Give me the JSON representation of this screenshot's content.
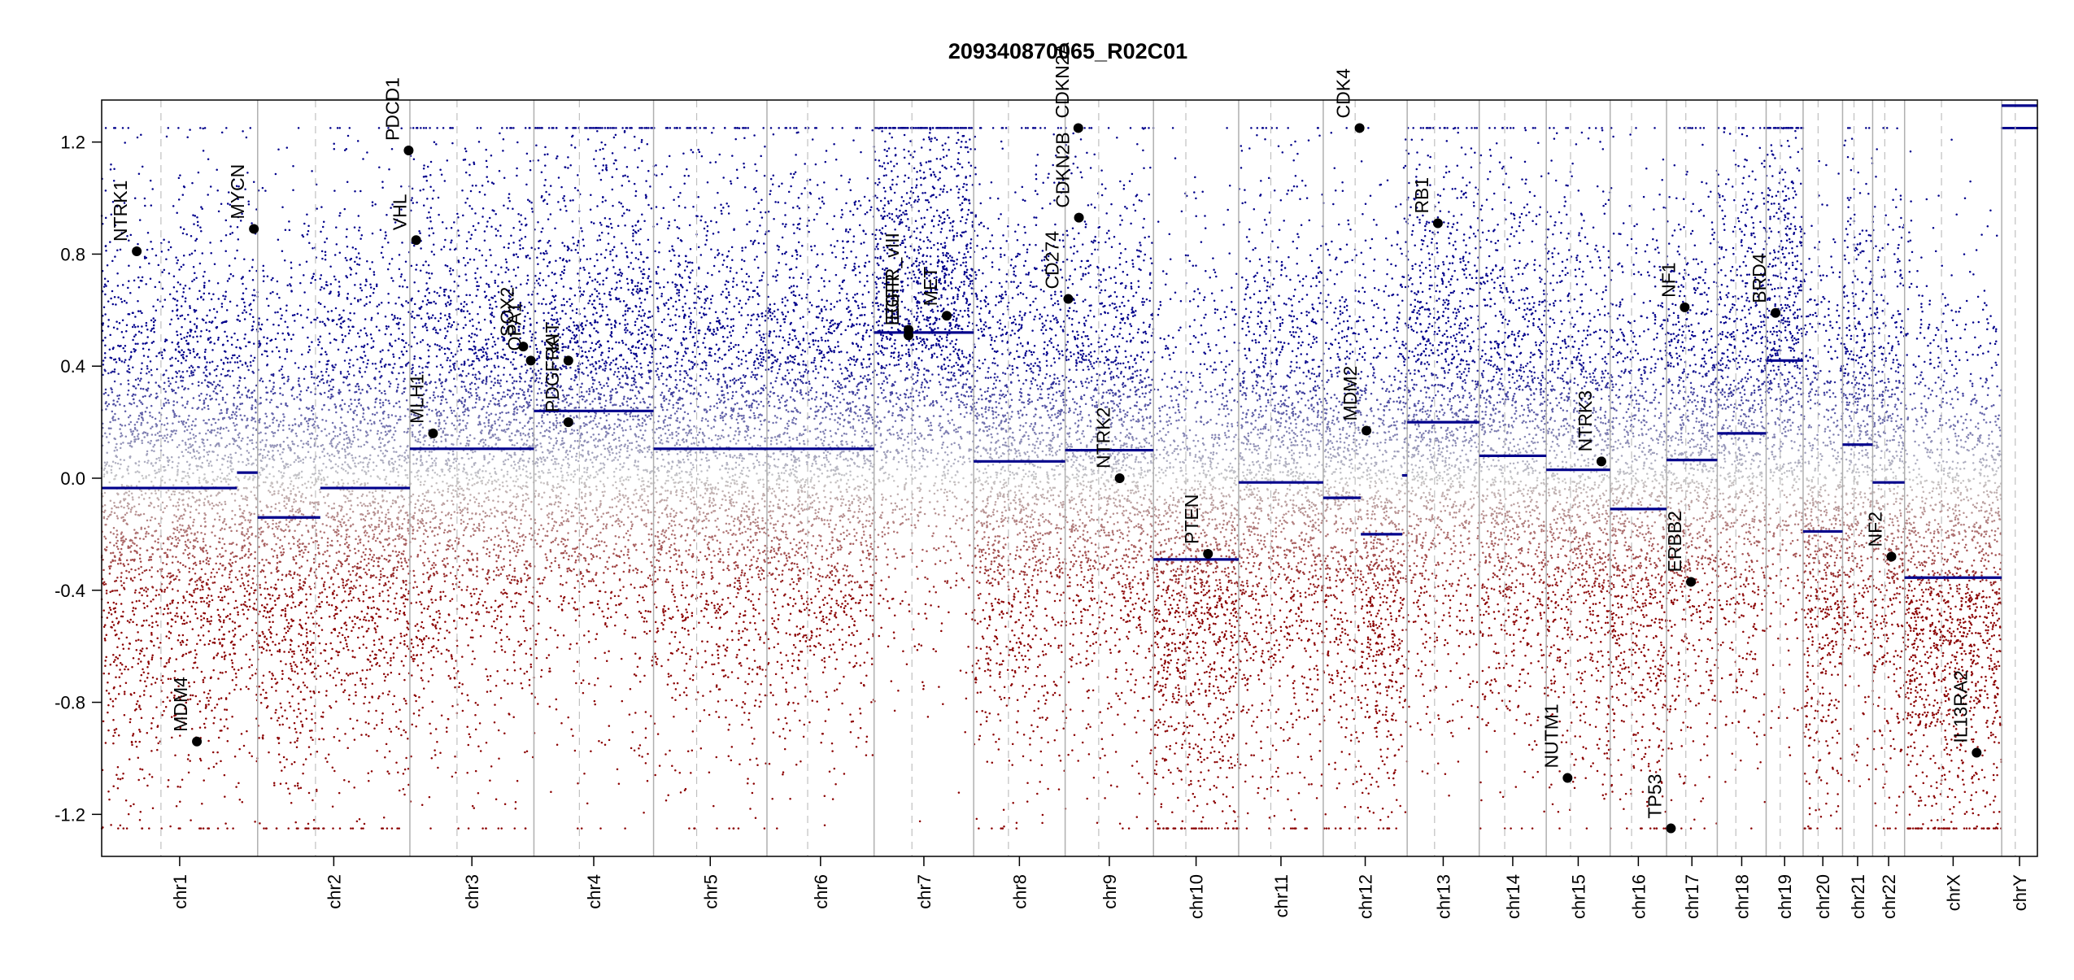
{
  "chart_data": {
    "type": "scatter",
    "title": "209340870065_R02C01",
    "xlabel": "",
    "ylabel": "",
    "ylim": [
      -1.35,
      1.35
    ],
    "yticks": [
      -1.2,
      -0.8,
      -0.4,
      0.0,
      0.4,
      0.8,
      1.2
    ],
    "ytick_labels": [
      "-1.2",
      "-0.8",
      "-0.4",
      "0.0",
      "0.4",
      "0.8",
      "1.2"
    ],
    "grid": false,
    "legend": "none",
    "colors": {
      "gain": "#00008b",
      "loss": "#8b0000",
      "segment": "#00008b",
      "gene_point": "#000000",
      "boundary": "#b0b0b0"
    },
    "chromosomes": [
      {
        "name": "chr1",
        "size": 249
      },
      {
        "name": "chr2",
        "size": 243
      },
      {
        "name": "chr3",
        "size": 198
      },
      {
        "name": "chr4",
        "size": 191
      },
      {
        "name": "chr5",
        "size": 181
      },
      {
        "name": "chr6",
        "size": 171
      },
      {
        "name": "chr7",
        "size": 159
      },
      {
        "name": "chr8",
        "size": 146
      },
      {
        "name": "chr9",
        "size": 141
      },
      {
        "name": "chr10",
        "size": 136
      },
      {
        "name": "chr11",
        "size": 135
      },
      {
        "name": "chr12",
        "size": 134
      },
      {
        "name": "chr13",
        "size": 115
      },
      {
        "name": "chr14",
        "size": 107
      },
      {
        "name": "chr15",
        "size": 102
      },
      {
        "name": "chr16",
        "size": 90
      },
      {
        "name": "chr17",
        "size": 81
      },
      {
        "name": "chr18",
        "size": 78
      },
      {
        "name": "chr19",
        "size": 59
      },
      {
        "name": "chr20",
        "size": 63
      },
      {
        "name": "chr21",
        "size": 48
      },
      {
        "name": "chr22",
        "size": 51
      },
      {
        "name": "chrX",
        "size": 155
      },
      {
        "name": "chrY",
        "size": 57
      }
    ],
    "segments": [
      {
        "chr": "chr1",
        "start": 0,
        "end": 216,
        "value": -0.035
      },
      {
        "chr": "chr1",
        "start": 216,
        "end": 249,
        "value": 0.02
      },
      {
        "chr": "chr2",
        "start": 0,
        "end": 100,
        "value": -0.14
      },
      {
        "chr": "chr2",
        "start": 100,
        "end": 243,
        "value": -0.035
      },
      {
        "chr": "chr3",
        "start": 0,
        "end": 198,
        "value": 0.105
      },
      {
        "chr": "chr4",
        "start": 0,
        "end": 191,
        "value": 0.24
      },
      {
        "chr": "chr5",
        "start": 0,
        "end": 181,
        "value": 0.105
      },
      {
        "chr": "chr6",
        "start": 0,
        "end": 171,
        "value": 0.105
      },
      {
        "chr": "chr7",
        "start": 0,
        "end": 159,
        "value": 0.52
      },
      {
        "chr": "chr8",
        "start": 0,
        "end": 146,
        "value": 0.06
      },
      {
        "chr": "chr9",
        "start": 0,
        "end": 141,
        "value": 0.1
      },
      {
        "chr": "chr10",
        "start": 0,
        "end": 136,
        "value": -0.29
      },
      {
        "chr": "chr11",
        "start": 0,
        "end": 135,
        "value": -0.015
      },
      {
        "chr": "chr12",
        "start": 0,
        "end": 60,
        "value": -0.07
      },
      {
        "chr": "chr12",
        "start": 60,
        "end": 126,
        "value": -0.2
      },
      {
        "chr": "chr12",
        "start": 126,
        "end": 134,
        "value": 0.01
      },
      {
        "chr": "chr13",
        "start": 0,
        "end": 115,
        "value": 0.2
      },
      {
        "chr": "chr14",
        "start": 0,
        "end": 107,
        "value": 0.08
      },
      {
        "chr": "chr15",
        "start": 0,
        "end": 102,
        "value": 0.03
      },
      {
        "chr": "chr16",
        "start": 0,
        "end": 90,
        "value": -0.11
      },
      {
        "chr": "chr17",
        "start": 0,
        "end": 81,
        "value": 0.065
      },
      {
        "chr": "chr18",
        "start": 0,
        "end": 78,
        "value": 0.16
      },
      {
        "chr": "chr19",
        "start": 0,
        "end": 59,
        "value": 0.42
      },
      {
        "chr": "chr20",
        "start": 0,
        "end": 63,
        "value": -0.19
      },
      {
        "chr": "chr21",
        "start": 0,
        "end": 48,
        "value": 0.12
      },
      {
        "chr": "chr22",
        "start": 0,
        "end": 51,
        "value": -0.015
      },
      {
        "chr": "chrX",
        "start": 0,
        "end": 155,
        "value": -0.355
      },
      {
        "chr": "chrY",
        "start": 0,
        "end": 57,
        "value": 1.33
      }
    ],
    "genes": [
      {
        "name": "NTRK1",
        "chr": "chr1",
        "pos": 56,
        "value": 0.81
      },
      {
        "name": "MDM4",
        "chr": "chr1",
        "pos": 152,
        "value": -0.94
      },
      {
        "name": "MYCN",
        "chr": "chr1",
        "pos": 243,
        "value": 0.89
      },
      {
        "name": "VHL",
        "chr": "chr3",
        "pos": 10,
        "value": 0.85
      },
      {
        "name": "PDCD1",
        "chr": "chr2",
        "pos": 241,
        "value": 1.17
      },
      {
        "name": "MLH1",
        "chr": "chr3",
        "pos": 37,
        "value": 0.16
      },
      {
        "name": "SOX2",
        "chr": "chr3",
        "pos": 181,
        "value": 0.47
      },
      {
        "name": "OPA1",
        "chr": "chr3",
        "pos": 193,
        "value": 0.42
      },
      {
        "name": "PDGFRA",
        "chr": "chr4",
        "pos": 55,
        "value": 0.2
      },
      {
        "name": "KIT",
        "chr": "chr4",
        "pos": 55,
        "value": 0.42
      },
      {
        "name": "EGFR",
        "chr": "chr7",
        "pos": 55,
        "value": 0.51
      },
      {
        "name": "EGFR_vIII",
        "chr": "chr7",
        "pos": 55,
        "value": 0.53
      },
      {
        "name": "MET",
        "chr": "chr7",
        "pos": 116,
        "value": 0.58
      },
      {
        "name": "CD274",
        "chr": "chr9",
        "pos": 5,
        "value": 0.64
      },
      {
        "name": "CDKN2A",
        "chr": "chr9",
        "pos": 21,
        "value": 1.25
      },
      {
        "name": "CDKN2B",
        "chr": "chr9",
        "pos": 22,
        "value": 0.93
      },
      {
        "name": "NTRK2",
        "chr": "chr9",
        "pos": 87,
        "value": 0.0
      },
      {
        "name": "PTEN",
        "chr": "chr10",
        "pos": 87,
        "value": -0.27
      },
      {
        "name": "CDK4",
        "chr": "chr12",
        "pos": 58,
        "value": 1.25
      },
      {
        "name": "MDM2",
        "chr": "chr12",
        "pos": 69,
        "value": 0.17
      },
      {
        "name": "RB1",
        "chr": "chr13",
        "pos": 49,
        "value": 0.91
      },
      {
        "name": "NUTM1",
        "chr": "chr15",
        "pos": 34,
        "value": -1.07
      },
      {
        "name": "NTRK3",
        "chr": "chr15",
        "pos": 88,
        "value": 0.06
      },
      {
        "name": "TP53",
        "chr": "chr17",
        "pos": 7,
        "value": -1.25
      },
      {
        "name": "NF1",
        "chr": "chr17",
        "pos": 29,
        "value": 0.61
      },
      {
        "name": "ERBB2",
        "chr": "chr17",
        "pos": 39,
        "value": -0.37
      },
      {
        "name": "BRD4",
        "chr": "chr19",
        "pos": 15,
        "value": 0.59
      },
      {
        "name": "NF2",
        "chr": "chr22",
        "pos": 30,
        "value": -0.28
      },
      {
        "name": "IL13RA2",
        "chr": "chrX",
        "pos": 115,
        "value": -0.98
      }
    ]
  }
}
